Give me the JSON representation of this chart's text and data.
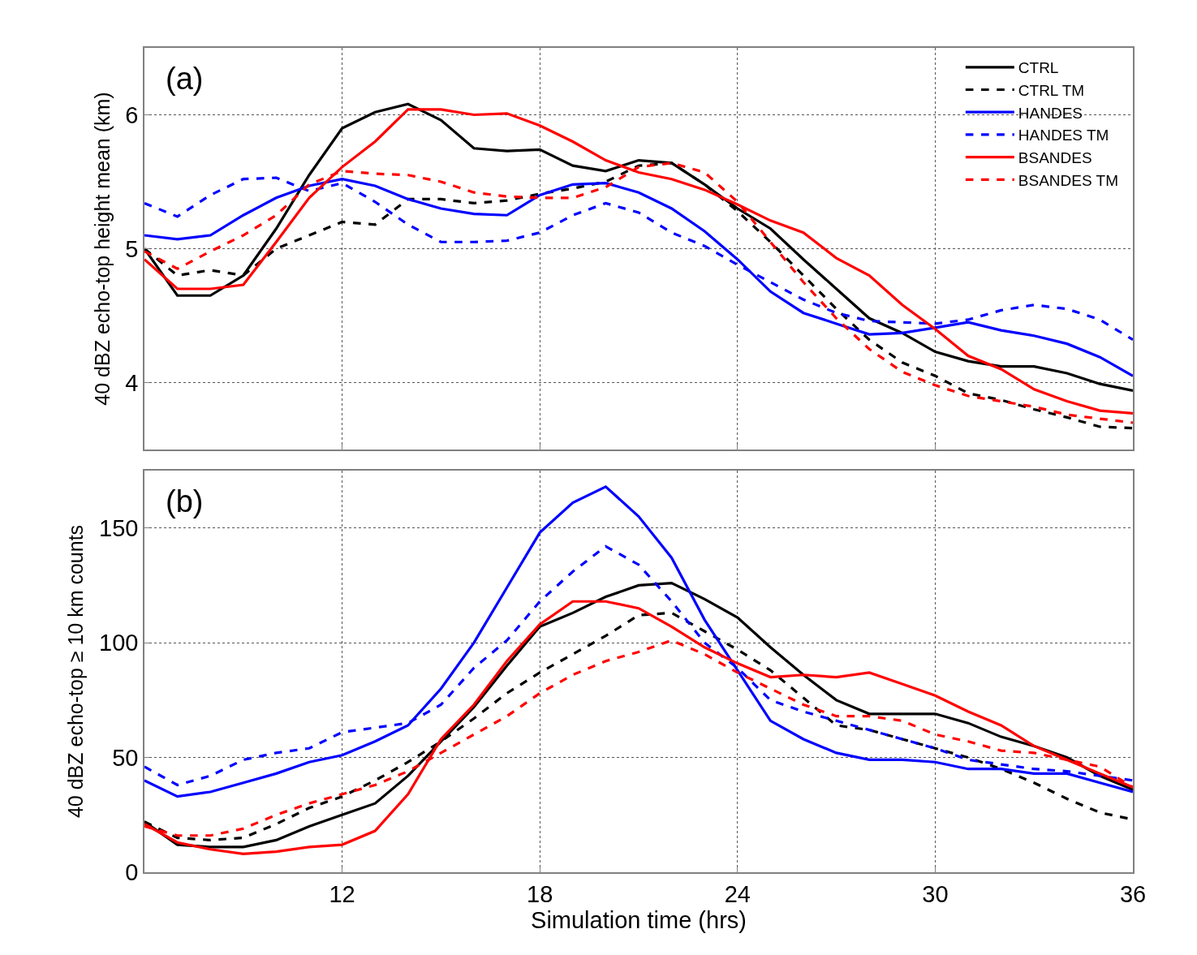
{
  "chart_data": [
    {
      "type": "line",
      "title": "(a)",
      "ylabel": "40 dBZ echo-top height mean (km)",
      "x": [
        6,
        7,
        8,
        9,
        10,
        11,
        12,
        13,
        14,
        15,
        16,
        17,
        18,
        19,
        20,
        21,
        22,
        23,
        24,
        25,
        26,
        27,
        28,
        29,
        30,
        31,
        32,
        33,
        34,
        35,
        36
      ],
      "xlim": [
        6,
        36
      ],
      "xticks": [
        12,
        18,
        24,
        30,
        36
      ],
      "ylim": [
        3.5,
        6.5
      ],
      "yticks": [
        4,
        5,
        6
      ],
      "grid": true,
      "legend": "top right",
      "tick_labels": "y",
      "series": [
        {
          "name": "CTRL",
          "color": "#000000",
          "line_style": "solid",
          "values": [
            5.0,
            4.65,
            4.65,
            4.8,
            5.15,
            5.55,
            5.9,
            6.02,
            6.08,
            5.96,
            5.75,
            5.73,
            5.74,
            5.62,
            5.58,
            5.66,
            5.64,
            5.48,
            5.3,
            5.15,
            4.92,
            4.7,
            4.48,
            4.37,
            4.23,
            4.16,
            4.12,
            4.12,
            4.07,
            3.99,
            3.94
          ]
        },
        {
          "name": "CTRL TM",
          "color": "#000000",
          "line_style": "dashed",
          "values": [
            5.0,
            4.8,
            4.84,
            4.8,
            5.0,
            5.1,
            5.2,
            5.18,
            5.37,
            5.37,
            5.34,
            5.36,
            5.41,
            5.45,
            5.5,
            5.62,
            5.64,
            5.48,
            5.28,
            5.05,
            4.8,
            4.55,
            4.32,
            4.15,
            4.05,
            3.92,
            3.87,
            3.8,
            3.74,
            3.67,
            3.66
          ]
        },
        {
          "name": "HANDES",
          "color": "#0000ff",
          "line_style": "solid",
          "values": [
            5.1,
            5.07,
            5.1,
            5.25,
            5.38,
            5.47,
            5.52,
            5.47,
            5.37,
            5.3,
            5.26,
            5.25,
            5.4,
            5.48,
            5.49,
            5.42,
            5.3,
            5.13,
            4.92,
            4.68,
            4.52,
            4.44,
            4.36,
            4.37,
            4.41,
            4.45,
            4.39,
            4.35,
            4.29,
            4.19,
            4.05
          ]
        },
        {
          "name": "HANDES TM",
          "color": "#0000ff",
          "line_style": "dashed",
          "values": [
            5.34,
            5.24,
            5.4,
            5.52,
            5.53,
            5.43,
            5.49,
            5.35,
            5.18,
            5.05,
            5.05,
            5.06,
            5.12,
            5.25,
            5.34,
            5.27,
            5.12,
            5.02,
            4.88,
            4.75,
            4.62,
            4.52,
            4.46,
            4.45,
            4.44,
            4.47,
            4.54,
            4.58,
            4.55,
            4.47,
            4.32
          ]
        },
        {
          "name": "BSANDES",
          "color": "#ff0000",
          "line_style": "solid",
          "values": [
            4.92,
            4.7,
            4.7,
            4.73,
            5.05,
            5.38,
            5.61,
            5.8,
            6.04,
            6.04,
            6.0,
            6.01,
            5.92,
            5.8,
            5.66,
            5.57,
            5.52,
            5.44,
            5.33,
            5.21,
            5.12,
            4.93,
            4.8,
            4.58,
            4.4,
            4.2,
            4.1,
            3.95,
            3.86,
            3.79,
            3.77
          ]
        },
        {
          "name": "BSANDES TM",
          "color": "#ff0000",
          "line_style": "dashed",
          "values": [
            4.98,
            4.85,
            4.98,
            5.1,
            5.25,
            5.48,
            5.58,
            5.56,
            5.55,
            5.5,
            5.42,
            5.39,
            5.38,
            5.38,
            5.46,
            5.61,
            5.64,
            5.57,
            5.35,
            5.05,
            4.75,
            4.48,
            4.25,
            4.08,
            3.98,
            3.9,
            3.86,
            3.82,
            3.76,
            3.73,
            3.7
          ]
        }
      ]
    },
    {
      "type": "line",
      "title": "(b)",
      "xlabel": "Simulation time (hrs)",
      "ylabel": "40 dBZ echo-top ≥ 10 km counts",
      "x": [
        6,
        7,
        8,
        9,
        10,
        11,
        12,
        13,
        14,
        15,
        16,
        17,
        18,
        19,
        20,
        21,
        22,
        23,
        24,
        25,
        26,
        27,
        28,
        29,
        30,
        31,
        32,
        33,
        34,
        35,
        36
      ],
      "xlim": [
        6,
        36
      ],
      "xticks": [
        12,
        18,
        24,
        30,
        36
      ],
      "ylim": [
        0,
        175
      ],
      "yticks": [
        0,
        50,
        100,
        150
      ],
      "grid": true,
      "series": [
        {
          "color": "#000000",
          "line_style": "solid",
          "values": [
            22,
            12,
            11,
            11,
            14,
            20,
            25,
            30,
            42,
            57,
            72,
            90,
            107,
            113,
            120,
            125,
            126,
            119,
            111,
            98,
            86,
            75,
            69,
            69,
            69,
            65,
            59,
            55,
            50,
            42,
            36
          ]
        },
        {
          "color": "#000000",
          "line_style": "dashed",
          "values": [
            22,
            15,
            14,
            15,
            21,
            28,
            33,
            40,
            48,
            57,
            67,
            78,
            87,
            95,
            103,
            112,
            113,
            105,
            97,
            88,
            76,
            64,
            62,
            58,
            54,
            50,
            45,
            39,
            32,
            26,
            23
          ]
        },
        {
          "color": "#0000ff",
          "line_style": "solid",
          "values": [
            40,
            33,
            35,
            39,
            43,
            48,
            51,
            57,
            64,
            80,
            100,
            124,
            148,
            161,
            168,
            155,
            137,
            110,
            88,
            66,
            58,
            52,
            49,
            49,
            48,
            45,
            45,
            43,
            43,
            39,
            35
          ]
        },
        {
          "color": "#0000ff",
          "line_style": "dashed",
          "values": [
            46,
            38,
            42,
            49,
            52,
            54,
            61,
            63,
            65,
            73,
            89,
            101,
            118,
            131,
            142,
            134,
            118,
            100,
            89,
            75,
            70,
            66,
            62,
            58,
            54,
            49,
            47,
            45,
            44,
            42,
            40
          ]
        },
        {
          "color": "#ff0000",
          "line_style": "solid",
          "values": [
            21,
            13,
            10,
            8,
            9,
            11,
            12,
            18,
            34,
            58,
            73,
            92,
            108,
            118,
            118,
            115,
            107,
            98,
            91,
            85,
            86,
            85,
            87,
            82,
            77,
            70,
            64,
            55,
            49,
            43,
            37
          ]
        },
        {
          "color": "#ff0000",
          "line_style": "dashed",
          "values": [
            20,
            16,
            16,
            19,
            25,
            30,
            34,
            38,
            44,
            52,
            60,
            68,
            78,
            86,
            92,
            96,
            101,
            95,
            87,
            80,
            73,
            68,
            68,
            66,
            60,
            57,
            53,
            52,
            49,
            46,
            37
          ]
        }
      ]
    }
  ]
}
